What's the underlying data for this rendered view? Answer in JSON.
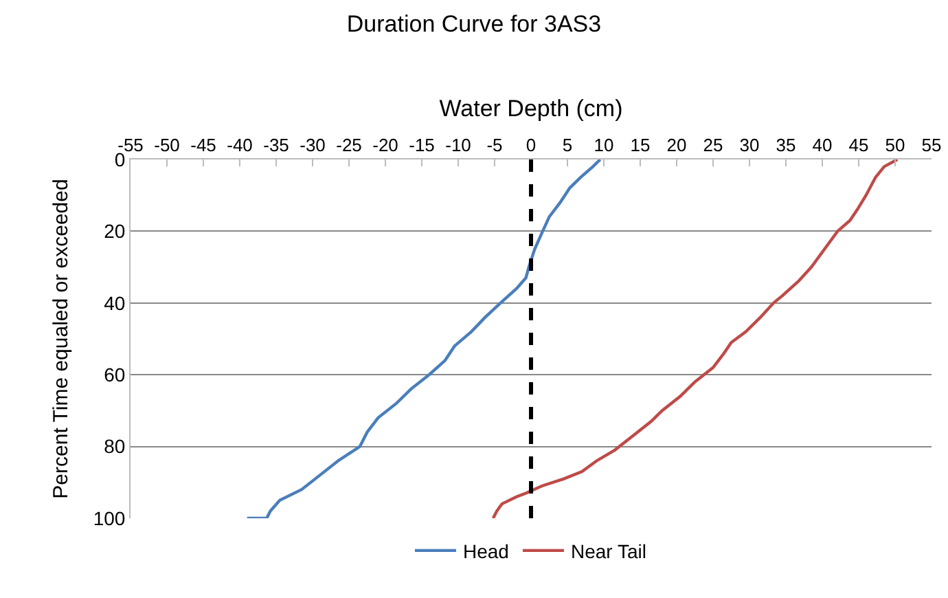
{
  "chart_data": {
    "type": "line",
    "title": "Duration Curve for 3AS3",
    "xlabel": "Water Depth (cm)",
    "ylabel": "Percent Time equaled or exceeded",
    "xlim": [
      -55,
      55
    ],
    "xticks": [
      -55,
      -50,
      -45,
      -40,
      -35,
      -30,
      -25,
      -20,
      -15,
      -10,
      -5,
      0,
      5,
      10,
      15,
      20,
      25,
      30,
      35,
      40,
      45,
      50,
      55
    ],
    "ylim": [
      100,
      0
    ],
    "yticks": [
      0,
      20,
      40,
      60,
      80,
      100
    ],
    "grid": "y",
    "legend": "bottom",
    "marker": "none",
    "line_style": "solid",
    "ref_lines": [
      {
        "axis": "x",
        "value": 0,
        "color": "#000000",
        "line_style": "dashed"
      }
    ],
    "series": [
      {
        "name": "Head",
        "color": "#4a7ebb",
        "x": [
          9.5,
          8.5,
          6.8,
          5.3,
          4.0,
          2.5,
          1.6,
          0.5,
          -0.3,
          -0.7,
          -2.0,
          -4.2,
          -6.3,
          -8.2,
          -10.5,
          -11.8,
          -14.0,
          -16.5,
          -18.5,
          -21.0,
          -22.5,
          -23.5,
          -26.5,
          -29.0,
          -31.5,
          -34.5,
          -35.8,
          -36.3,
          -39
        ],
        "values": [
          0,
          2,
          5,
          8,
          12,
          16,
          20,
          25,
          30,
          33,
          36,
          40,
          44,
          48,
          52,
          56,
          60,
          64,
          68,
          72,
          76,
          80,
          84,
          88,
          92,
          95,
          98,
          100,
          100
        ]
      },
      {
        "name": "Near Tail",
        "color": "#be4b48",
        "x": [
          50.3,
          48.5,
          47.3,
          46.0,
          44.8,
          43.8,
          42.1,
          40.3,
          38.5,
          36.7,
          34.5,
          33.3,
          31.5,
          29.5,
          27.5,
          26.5,
          25.0,
          22.5,
          20.5,
          18.0,
          16.5,
          14.0,
          11.5,
          9.0,
          7.0,
          4.5,
          1.5,
          -0.7,
          -2.0,
          -4.0,
          -4.7,
          -5.2
        ],
        "values": [
          0,
          2,
          5,
          10,
          14,
          17,
          20,
          25,
          30,
          34,
          38,
          40,
          44,
          48,
          51,
          54,
          58,
          62,
          66,
          70,
          73,
          77,
          81,
          84,
          87,
          89,
          91,
          93,
          94,
          96,
          98,
          100
        ]
      }
    ]
  }
}
